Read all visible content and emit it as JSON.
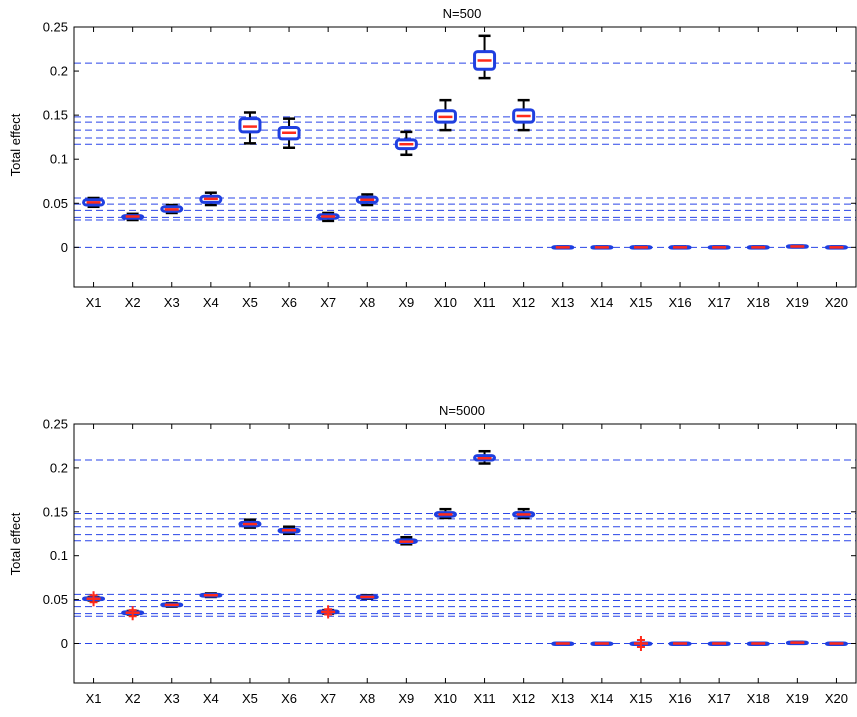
{
  "chart_data": [
    {
      "type": "box",
      "title": "N=500",
      "ylabel": "Total effect",
      "xlabel": "",
      "ylim": [
        -0.045,
        0.25
      ],
      "yticks": [
        "0",
        "0.05",
        "0.1",
        "0.15",
        "0.2",
        "0.25"
      ],
      "yticks_values": [
        0,
        0.05,
        0.1,
        0.15,
        0.2,
        0.25
      ],
      "categories": [
        "X1",
        "X2",
        "X3",
        "X4",
        "X5",
        "X6",
        "X7",
        "X8",
        "X9",
        "X10",
        "X11",
        "X12",
        "X13",
        "X14",
        "X15",
        "X16",
        "X17",
        "X18",
        "X19",
        "X20"
      ],
      "reference_lines": [
        0,
        0.031,
        0.034,
        0.042,
        0.049,
        0.056,
        0.117,
        0.124,
        0.133,
        0.142,
        0.148,
        0.209
      ],
      "boxes": [
        {
          "q1": 0.048,
          "median": 0.051,
          "q3": 0.054,
          "whisker_low": 0.046,
          "whisker_high": 0.056,
          "outliers": []
        },
        {
          "q1": 0.033,
          "median": 0.035,
          "q3": 0.036,
          "whisker_low": 0.031,
          "whisker_high": 0.038,
          "outliers": []
        },
        {
          "q1": 0.041,
          "median": 0.043,
          "q3": 0.046,
          "whisker_low": 0.039,
          "whisker_high": 0.048,
          "outliers": []
        },
        {
          "q1": 0.051,
          "median": 0.055,
          "q3": 0.058,
          "whisker_low": 0.048,
          "whisker_high": 0.062,
          "outliers": []
        },
        {
          "q1": 0.131,
          "median": 0.137,
          "q3": 0.146,
          "whisker_low": 0.118,
          "whisker_high": 0.153,
          "outliers": []
        },
        {
          "q1": 0.123,
          "median": 0.13,
          "q3": 0.136,
          "whisker_low": 0.113,
          "whisker_high": 0.146,
          "outliers": []
        },
        {
          "q1": 0.033,
          "median": 0.035,
          "q3": 0.037,
          "whisker_low": 0.03,
          "whisker_high": 0.039,
          "outliers": []
        },
        {
          "q1": 0.051,
          "median": 0.054,
          "q3": 0.057,
          "whisker_low": 0.048,
          "whisker_high": 0.06,
          "outliers": []
        },
        {
          "q1": 0.112,
          "median": 0.117,
          "q3": 0.122,
          "whisker_low": 0.105,
          "whisker_high": 0.131,
          "outliers": []
        },
        {
          "q1": 0.142,
          "median": 0.148,
          "q3": 0.155,
          "whisker_low": 0.133,
          "whisker_high": 0.167,
          "outliers": []
        },
        {
          "q1": 0.202,
          "median": 0.212,
          "q3": 0.222,
          "whisker_low": 0.192,
          "whisker_high": 0.24,
          "outliers": []
        },
        {
          "q1": 0.142,
          "median": 0.149,
          "q3": 0.156,
          "whisker_low": 0.133,
          "whisker_high": 0.167,
          "outliers": []
        },
        {
          "q1": -0.0008,
          "median": 0,
          "q3": 0.0008,
          "whisker_low": -0.001,
          "whisker_high": 0.001,
          "outliers": []
        },
        {
          "q1": -0.0008,
          "median": 0,
          "q3": 0.0008,
          "whisker_low": -0.001,
          "whisker_high": 0.001,
          "outliers": []
        },
        {
          "q1": -0.0008,
          "median": 0,
          "q3": 0.0008,
          "whisker_low": -0.001,
          "whisker_high": 0.001,
          "outliers": []
        },
        {
          "q1": -0.0008,
          "median": 0,
          "q3": 0.0008,
          "whisker_low": -0.001,
          "whisker_high": 0.001,
          "outliers": []
        },
        {
          "q1": -0.0008,
          "median": 0,
          "q3": 0.0008,
          "whisker_low": -0.001,
          "whisker_high": 0.001,
          "outliers": []
        },
        {
          "q1": -0.0008,
          "median": 0,
          "q3": 0.0008,
          "whisker_low": -0.001,
          "whisker_high": 0.001,
          "outliers": []
        },
        {
          "q1": 0.0002,
          "median": 0.001,
          "q3": 0.0018,
          "whisker_low": 0,
          "whisker_high": 0.002,
          "outliers": []
        },
        {
          "q1": -0.0008,
          "median": 0,
          "q3": 0.0008,
          "whisker_low": -0.001,
          "whisker_high": 0.001,
          "outliers": []
        }
      ]
    },
    {
      "type": "box",
      "title": "N=5000",
      "ylabel": "Total effect",
      "xlabel": "",
      "ylim": [
        -0.045,
        0.25
      ],
      "yticks": [
        "0",
        "0.05",
        "0.1",
        "0.15",
        "0.2",
        "0.25"
      ],
      "yticks_values": [
        0,
        0.05,
        0.1,
        0.15,
        0.2,
        0.25
      ],
      "categories": [
        "X1",
        "X2",
        "X3",
        "X4",
        "X5",
        "X6",
        "X7",
        "X8",
        "X9",
        "X10",
        "X11",
        "X12",
        "X13",
        "X14",
        "X15",
        "X16",
        "X17",
        "X18",
        "X19",
        "X20"
      ],
      "reference_lines": [
        0,
        0.031,
        0.034,
        0.042,
        0.049,
        0.056,
        0.117,
        0.124,
        0.133,
        0.142,
        0.148,
        0.209
      ],
      "boxes": [
        {
          "q1": 0.05,
          "median": 0.051,
          "q3": 0.052,
          "whisker_low": 0.049,
          "whisker_high": 0.053,
          "outliers": [
            0.047,
            0.055
          ]
        },
        {
          "q1": 0.034,
          "median": 0.035,
          "q3": 0.036,
          "whisker_low": 0.033,
          "whisker_high": 0.037,
          "outliers": [
            0.031,
            0.038
          ]
        },
        {
          "q1": 0.043,
          "median": 0.044,
          "q3": 0.045,
          "whisker_low": 0.042,
          "whisker_high": 0.046,
          "outliers": []
        },
        {
          "q1": 0.054,
          "median": 0.055,
          "q3": 0.056,
          "whisker_low": 0.053,
          "whisker_high": 0.057,
          "outliers": []
        },
        {
          "q1": 0.134,
          "median": 0.136,
          "q3": 0.138,
          "whisker_low": 0.132,
          "whisker_high": 0.141,
          "outliers": []
        },
        {
          "q1": 0.127,
          "median": 0.129,
          "q3": 0.13,
          "whisker_low": 0.125,
          "whisker_high": 0.133,
          "outliers": []
        },
        {
          "q1": 0.035,
          "median": 0.036,
          "q3": 0.037,
          "whisker_low": 0.034,
          "whisker_high": 0.038,
          "outliers": [
            0.033,
            0.039
          ]
        },
        {
          "q1": 0.052,
          "median": 0.053,
          "q3": 0.054,
          "whisker_low": 0.051,
          "whisker_high": 0.055,
          "outliers": []
        },
        {
          "q1": 0.115,
          "median": 0.116,
          "q3": 0.118,
          "whisker_low": 0.113,
          "whisker_high": 0.121,
          "outliers": []
        },
        {
          "q1": 0.145,
          "median": 0.147,
          "q3": 0.149,
          "whisker_low": 0.143,
          "whisker_high": 0.153,
          "outliers": []
        },
        {
          "q1": 0.209,
          "median": 0.211,
          "q3": 0.214,
          "whisker_low": 0.205,
          "whisker_high": 0.219,
          "outliers": []
        },
        {
          "q1": 0.145,
          "median": 0.147,
          "q3": 0.149,
          "whisker_low": 0.143,
          "whisker_high": 0.153,
          "outliers": []
        },
        {
          "q1": -0.0005,
          "median": 0,
          "q3": 0.0005,
          "whisker_low": -0.0008,
          "whisker_high": 0.0008,
          "outliers": []
        },
        {
          "q1": -0.0005,
          "median": 0,
          "q3": 0.0005,
          "whisker_low": -0.0008,
          "whisker_high": 0.0008,
          "outliers": []
        },
        {
          "q1": -0.0005,
          "median": 0,
          "q3": 0.0005,
          "whisker_low": -0.0008,
          "whisker_high": 0.0008,
          "outliers": [
            -0.004,
            0.004
          ]
        },
        {
          "q1": -0.0005,
          "median": 0,
          "q3": 0.0005,
          "whisker_low": -0.0008,
          "whisker_high": 0.0008,
          "outliers": []
        },
        {
          "q1": -0.0005,
          "median": 0,
          "q3": 0.0005,
          "whisker_low": -0.0008,
          "whisker_high": 0.0008,
          "outliers": []
        },
        {
          "q1": -0.0005,
          "median": 0,
          "q3": 0.0005,
          "whisker_low": -0.0008,
          "whisker_high": 0.0008,
          "outliers": []
        },
        {
          "q1": 0.0005,
          "median": 0.001,
          "q3": 0.0015,
          "whisker_low": 0.0002,
          "whisker_high": 0.0018,
          "outliers": []
        },
        {
          "q1": -0.0005,
          "median": 0,
          "q3": 0.0005,
          "whisker_low": -0.0008,
          "whisker_high": 0.0008,
          "outliers": []
        }
      ]
    }
  ],
  "colors": {
    "box": "#1f3fe0",
    "median": "#ff2a1a",
    "whisker": "#000000",
    "reference_line": "#2a45e8",
    "axes": "#000000"
  }
}
